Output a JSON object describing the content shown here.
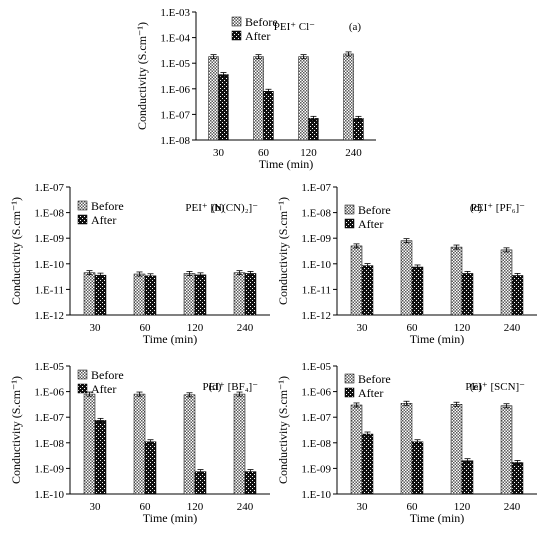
{
  "figure": {
    "xlabel": "Time (min)",
    "ylabel": "Conductivity (S.cm⁻¹)",
    "legend": [
      "Before",
      "After"
    ],
    "colors": {
      "before_fill": "#9a9a9a",
      "after_fill": "#1a1a1a",
      "axis": "#000000"
    }
  },
  "chart_data": [
    {
      "type": "bar",
      "panel": "(a)",
      "label": "PEI⁺ Cl⁻",
      "categories": [
        "30",
        "60",
        "120",
        "240"
      ],
      "y_scale": "log",
      "ylim": [
        1e-08,
        0.001
      ],
      "yticks": [
        "1.E-08",
        "1.E-07",
        "1.E-06",
        "1.E-05",
        "1.E-04",
        "1.E-03"
      ],
      "series": [
        {
          "name": "Before",
          "values": [
            1.8e-05,
            1.8e-05,
            1.8e-05,
            2.3e-05
          ]
        },
        {
          "name": "After",
          "values": [
            3.6e-06,
            8e-07,
            7e-08,
            7e-08
          ]
        }
      ]
    },
    {
      "type": "bar",
      "panel": "(b)",
      "label": "PEI⁺ [N(CN)₂]⁻",
      "categories": [
        "30",
        "60",
        "120",
        "240"
      ],
      "y_scale": "log",
      "ylim": [
        1e-12,
        1e-07
      ],
      "yticks": [
        "1.E-12",
        "1.E-11",
        "1.E-10",
        "1.E-09",
        "1.E-08",
        "1.E-07"
      ],
      "series": [
        {
          "name": "Before",
          "values": [
            4.5e-11,
            4e-11,
            4.2e-11,
            4.5e-11
          ]
        },
        {
          "name": "After",
          "values": [
            3.6e-11,
            3.4e-11,
            3.7e-11,
            4.2e-11
          ]
        }
      ]
    },
    {
      "type": "bar",
      "panel": "(c)",
      "label": "PEI⁺ [PF₆]⁻",
      "categories": [
        "30",
        "60",
        "120",
        "240"
      ],
      "y_scale": "log",
      "ylim": [
        1e-12,
        1e-07
      ],
      "yticks": [
        "1.E-12",
        "1.E-11",
        "1.E-10",
        "1.E-09",
        "1.E-08",
        "1.E-07"
      ],
      "series": [
        {
          "name": "Before",
          "values": [
            5e-10,
            8e-10,
            4.5e-10,
            3.5e-10
          ]
        },
        {
          "name": "After",
          "values": [
            8.5e-11,
            7.5e-11,
            4.2e-11,
            3.5e-11
          ]
        }
      ]
    },
    {
      "type": "bar",
      "panel": "(d)",
      "label": "PEI⁺ [BF₄]⁻",
      "categories": [
        "30",
        "60",
        "120",
        "240"
      ],
      "y_scale": "log",
      "ylim": [
        1e-10,
        1e-05
      ],
      "yticks": [
        "1.E-10",
        "1.E-09",
        "1.E-08",
        "1.E-07",
        "1.E-06",
        "1.E-05"
      ],
      "series": [
        {
          "name": "Before",
          "values": [
            8e-07,
            8e-07,
            7.5e-07,
            8e-07
          ]
        },
        {
          "name": "After",
          "values": [
            7.5e-08,
            1.1e-08,
            7.5e-10,
            7.5e-10
          ]
        }
      ]
    },
    {
      "type": "bar",
      "panel": "(e)",
      "label": "PEI⁺ [SCN]⁻",
      "categories": [
        "30",
        "60",
        "120",
        "240"
      ],
      "y_scale": "log",
      "ylim": [
        1e-10,
        1e-05
      ],
      "yticks": [
        "1.E-10",
        "1.E-09",
        "1.E-08",
        "1.E-07",
        "1.E-06",
        "1.E-05"
      ],
      "series": [
        {
          "name": "Before",
          "values": [
            3e-07,
            3.5e-07,
            3.2e-07,
            2.8e-07
          ]
        },
        {
          "name": "After",
          "values": [
            2.2e-08,
            1.1e-08,
            2e-09,
            1.7e-09
          ]
        }
      ]
    }
  ]
}
